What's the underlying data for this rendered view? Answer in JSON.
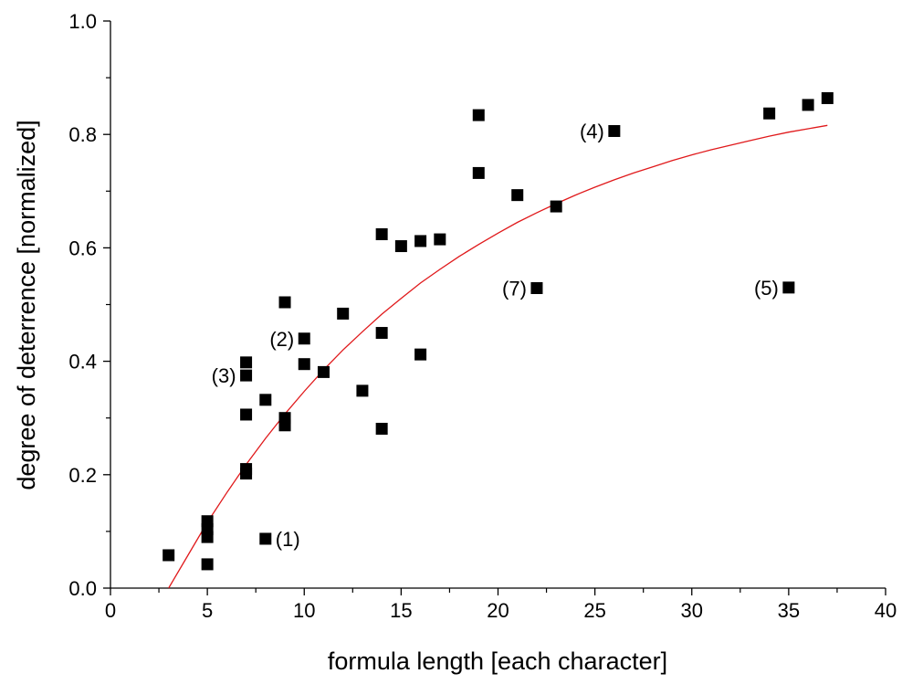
{
  "chart_data": {
    "type": "scatter",
    "title": "",
    "xlabel": "formula length [each character]",
    "ylabel": "degree of deterrence [normalized]",
    "xlim": [
      0,
      40
    ],
    "ylim": [
      0.0,
      1.0
    ],
    "x_ticks": [
      0,
      5,
      10,
      15,
      20,
      25,
      30,
      35,
      40
    ],
    "x_tick_labels": [
      "0",
      "5",
      "10",
      "15",
      "20",
      "25",
      "30",
      "35",
      "40"
    ],
    "y_ticks": [
      0.0,
      0.2,
      0.4,
      0.6,
      0.8,
      1.0
    ],
    "y_tick_labels": [
      "0.0",
      "0.2",
      "0.4",
      "0.6",
      "0.8",
      "1.0"
    ],
    "grid": false,
    "legend": "none",
    "series": [
      {
        "marker": "square",
        "color": "#000000",
        "points": [
          [
            3,
            0.058
          ],
          [
            5,
            0.118
          ],
          [
            5,
            0.104
          ],
          [
            5,
            0.09
          ],
          [
            5,
            0.042
          ],
          [
            7,
            0.398
          ],
          [
            7,
            0.375
          ],
          [
            7,
            0.306
          ],
          [
            7,
            0.21
          ],
          [
            7,
            0.202
          ],
          [
            8,
            0.332
          ],
          [
            8,
            0.087
          ],
          [
            9,
            0.504
          ],
          [
            9,
            0.3
          ],
          [
            9,
            0.287
          ],
          [
            10,
            0.44
          ],
          [
            10,
            0.395
          ],
          [
            11,
            0.381
          ],
          [
            12,
            0.484
          ],
          [
            13,
            0.348
          ],
          [
            14,
            0.624
          ],
          [
            14,
            0.45
          ],
          [
            14,
            0.281
          ],
          [
            15,
            0.603
          ],
          [
            16,
            0.612
          ],
          [
            16,
            0.412
          ],
          [
            17,
            0.615
          ],
          [
            19,
            0.834
          ],
          [
            19,
            0.732
          ],
          [
            21,
            0.693
          ],
          [
            22,
            0.529
          ],
          [
            23,
            0.673
          ],
          [
            26,
            0.806
          ],
          [
            34,
            0.837
          ],
          [
            35,
            0.53
          ],
          [
            36,
            0.852
          ],
          [
            37,
            0.864
          ]
        ]
      },
      {
        "type": "line",
        "color": "#e0191b",
        "points": [
          [
            3,
            0.0
          ],
          [
            4,
            0.058
          ],
          [
            5,
            0.116
          ],
          [
            6,
            0.168
          ],
          [
            7,
            0.218
          ],
          [
            8,
            0.264
          ],
          [
            9,
            0.307
          ],
          [
            10,
            0.347
          ],
          [
            11,
            0.385
          ],
          [
            12,
            0.42
          ],
          [
            13,
            0.452
          ],
          [
            14,
            0.483
          ],
          [
            15,
            0.511
          ],
          [
            16,
            0.538
          ],
          [
            17,
            0.562
          ],
          [
            18,
            0.585
          ],
          [
            19,
            0.606
          ],
          [
            20,
            0.626
          ],
          [
            21,
            0.645
          ],
          [
            22,
            0.662
          ],
          [
            23,
            0.678
          ],
          [
            24,
            0.693
          ],
          [
            25,
            0.707
          ],
          [
            26,
            0.72
          ],
          [
            27,
            0.732
          ],
          [
            28,
            0.743
          ],
          [
            29,
            0.754
          ],
          [
            30,
            0.764
          ],
          [
            31,
            0.773
          ],
          [
            32,
            0.781
          ],
          [
            33,
            0.789
          ],
          [
            34,
            0.797
          ],
          [
            35,
            0.804
          ],
          [
            36,
            0.81
          ],
          [
            37,
            0.816
          ]
        ]
      }
    ],
    "annotations": [
      {
        "text": "(1)",
        "x": 8,
        "y": 0.087,
        "side": "right"
      },
      {
        "text": "(2)",
        "x": 10,
        "y": 0.44,
        "side": "left"
      },
      {
        "text": "(3)",
        "x": 7,
        "y": 0.375,
        "side": "left"
      },
      {
        "text": "(4)",
        "x": 26,
        "y": 0.806,
        "side": "left"
      },
      {
        "text": "(5)",
        "x": 35,
        "y": 0.53,
        "side": "left"
      },
      {
        "text": "(7)",
        "x": 22,
        "y": 0.529,
        "side": "left"
      }
    ]
  }
}
